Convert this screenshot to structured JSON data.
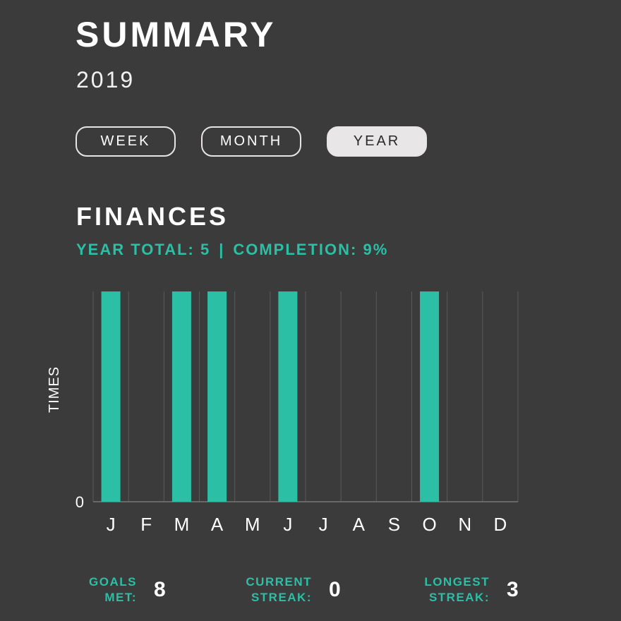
{
  "header": {
    "title": "SUMMARY",
    "year": "2019"
  },
  "period_tabs": [
    {
      "label": "WEEK",
      "active": false
    },
    {
      "label": "MONTH",
      "active": false
    },
    {
      "label": "YEAR",
      "active": true
    }
  ],
  "section": {
    "title": "FINANCES",
    "year_total_label": "YEAR TOTAL: 5",
    "separator": "|",
    "completion_label": "COMPLETION: 9%"
  },
  "stats": {
    "goals_met_label_1": "GOALS",
    "goals_met_label_2": "MET:",
    "goals_met_value": "8",
    "current_streak_label_1": "CURRENT",
    "current_streak_label_2": "STREAK:",
    "current_streak_value": "0",
    "longest_streak_label_1": "LONGEST",
    "longest_streak_label_2": "STREAK:",
    "longest_streak_value": "3"
  },
  "colors": {
    "background": "#3b3b3b",
    "accent": "#2bbfa6",
    "grid": "#5a5a5a"
  },
  "chart_data": {
    "type": "bar",
    "categories": [
      "J",
      "F",
      "M",
      "A",
      "M",
      "J",
      "J",
      "A",
      "S",
      "O",
      "N",
      "D"
    ],
    "values": [
      1,
      0,
      1,
      1,
      0,
      1,
      0,
      0,
      0,
      1,
      0,
      0
    ],
    "ylabel": "TIMES",
    "y_tick_labels": [
      "0"
    ],
    "ylim": [
      0,
      1
    ],
    "bar_color": "#2bbfa6",
    "grid": true
  }
}
